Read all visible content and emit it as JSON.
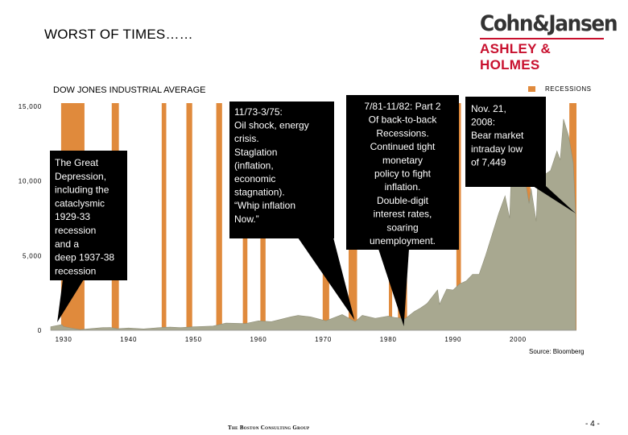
{
  "header": {
    "title": "WORST OF TIMES……",
    "logo_top": "Cohn&Jansen",
    "logo_bottom": "ASHLEY & HOLMES"
  },
  "colors": {
    "area_fill": "#a8a890",
    "recession": "#e08a3c",
    "callout": "#000000"
  },
  "chart_data": {
    "type": "area",
    "title": "DOW JONES INDUSTRIAL AVERAGE",
    "legend": [
      "RECESSIONS"
    ],
    "xlim": [
      1928,
      2009
    ],
    "ylim": [
      0,
      15000
    ],
    "y_ticks": [
      0,
      5000,
      10000,
      15000
    ],
    "y_tick_labels": [
      "0",
      "5,000",
      "10,000",
      "15,000"
    ],
    "x_ticks": [
      1930,
      1940,
      1950,
      1960,
      1970,
      1980,
      1990,
      2000
    ],
    "series": [
      {
        "name": "Dow Jones Industrial Average",
        "x": [
          1928,
          1929.7,
          1930,
          1931,
          1932.5,
          1934,
          1936,
          1937.2,
          1938.3,
          1940,
          1942.3,
          1945,
          1946.4,
          1948,
          1950,
          1953,
          1955,
          1958,
          1960,
          1962,
          1965,
          1966.1,
          1968,
          1970.4,
          1972.9,
          1974.9,
          1976,
          1978,
          1980,
          1981,
          1982.6,
          1984,
          1985,
          1986,
          1987.6,
          1987.9,
          1989,
          1990,
          1991,
          1992,
          1993,
          1994,
          1995,
          1996,
          1997,
          1998,
          1998.7,
          1999,
          2000,
          2000.1,
          2001,
          2001.7,
          2002,
          2002.8,
          2003,
          2004,
          2005,
          2006,
          2006.5,
          2007,
          2007.8,
          2008,
          2008.5,
          2008.9
        ],
        "values": [
          240,
          381,
          250,
          160,
          41,
          100,
          180,
          190,
          100,
          150,
          92,
          190,
          212,
          180,
          230,
          280,
          480,
          450,
          630,
          580,
          900,
          995,
          900,
          630,
          1050,
          580,
          1000,
          800,
          950,
          850,
          777,
          1250,
          1500,
          1800,
          2700,
          1740,
          2750,
          2700,
          3100,
          3300,
          3750,
          3750,
          5000,
          6400,
          7800,
          9000,
          7500,
          11000,
          11500,
          11700,
          10300,
          8500,
          9500,
          7300,
          9500,
          10400,
          10700,
          12000,
          11400,
          14150,
          13000,
          12500,
          11200,
          7449
        ]
      }
    ],
    "recessions": [
      [
        1929.6,
        1933.2
      ],
      [
        1937.4,
        1938.5
      ],
      [
        1945.1,
        1945.8
      ],
      [
        1948.9,
        1949.8
      ],
      [
        1953.5,
        1954.4
      ],
      [
        1957.6,
        1958.3
      ],
      [
        1960.3,
        1961.1
      ],
      [
        1969.9,
        1970.9
      ],
      [
        1973.9,
        1975.2
      ],
      [
        1980.1,
        1980.6
      ],
      [
        1981.5,
        1982.9
      ],
      [
        1990.5,
        1991.2
      ],
      [
        2001.2,
        2001.9
      ],
      [
        2007.9,
        2009.0
      ]
    ],
    "annotations": [
      {
        "text": "The Great Depression, including the cataclysmic 1929-33 recession and a deep 1937-38 recession",
        "x": 1929.5,
        "y": 0
      },
      {
        "text": "11/73-3/75: Oil shock, energy crisis. Staglation (inflation, economic stagnation). “Whip inflation Now.”",
        "x": 1974.8,
        "y": 0
      },
      {
        "text": "7/81-11/82: Part 2 Of back-to-back Recessions. Continued tight monetary policy to fight inflation. Double-digit interest rates, soaring unemployment.",
        "x": 1982.4,
        "y": 0
      },
      {
        "text": "Nov. 21, 2008: Bear market intraday low of 7,449",
        "x": 2008.9,
        "y": 7449
      }
    ],
    "source": "Source: Bloomberg"
  },
  "footer": {
    "firm": "The Boston Consulting Group",
    "page": "- 4 -"
  }
}
